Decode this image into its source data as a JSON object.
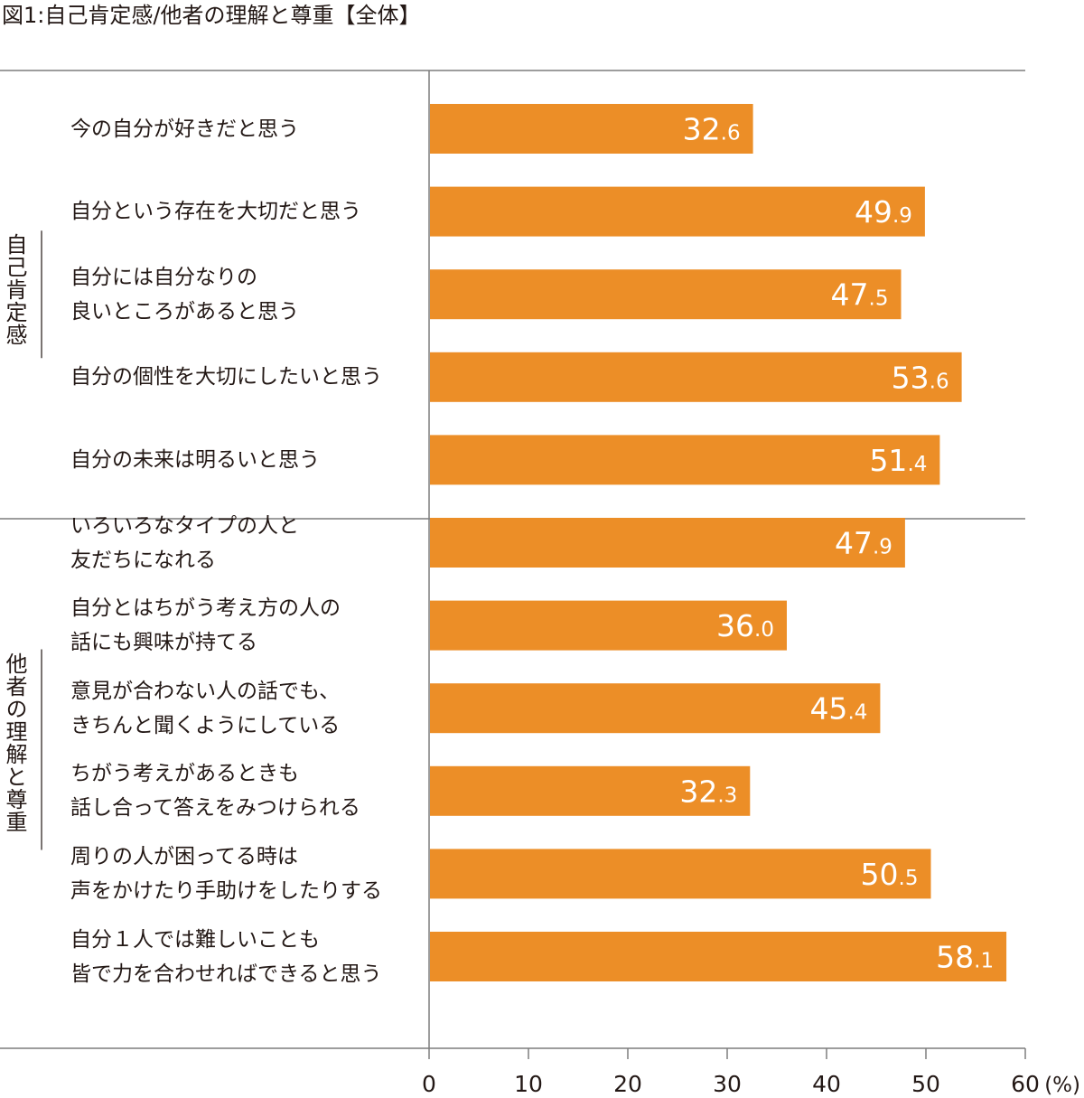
{
  "title": "図1:自己肯定感/他者の理解と尊重【全体】",
  "colors": {
    "bar": "#ec8e27",
    "axis": "#7d7d7d",
    "text": "#231815",
    "value_text": "#ffffff"
  },
  "chart_data": {
    "type": "bar",
    "orientation": "horizontal",
    "title": "図1:自己肯定感/他者の理解と尊重【全体】",
    "unit": "(%)",
    "xlim": [
      0,
      60
    ],
    "ticks": [
      0,
      10,
      20,
      30,
      40,
      50,
      60
    ],
    "groups": [
      {
        "name": "自己肯定感",
        "items": [
          {
            "lines": [
              "今の自分が好きだと思う"
            ],
            "value": 32.6,
            "display": [
              "32",
              ".6"
            ]
          },
          {
            "lines": [
              "自分という存在を大切だと思う"
            ],
            "value": 49.9,
            "display": [
              "49",
              ".9"
            ]
          },
          {
            "lines": [
              "自分には自分なりの",
              "良いところがあると思う"
            ],
            "value": 47.5,
            "display": [
              "47",
              ".5"
            ]
          },
          {
            "lines": [
              "自分の個性を大切にしたいと思う"
            ],
            "value": 53.6,
            "display": [
              "53",
              ".6"
            ]
          },
          {
            "lines": [
              "自分の未来は明るいと思う"
            ],
            "value": 51.4,
            "display": [
              "51",
              ".4"
            ]
          }
        ]
      },
      {
        "name": "他者の理解と尊重",
        "items": [
          {
            "lines": [
              "いろいろなタイプの人と",
              "友だちになれる"
            ],
            "value": 47.9,
            "display": [
              "47",
              ".9"
            ]
          },
          {
            "lines": [
              "自分とはちがう考え方の人の",
              "話にも興味が持てる"
            ],
            "value": 36.0,
            "display": [
              "36",
              ".0"
            ]
          },
          {
            "lines": [
              "意見が合わない人の話でも、",
              "きちんと聞くようにしている"
            ],
            "value": 45.4,
            "display": [
              "45",
              ".4"
            ]
          },
          {
            "lines": [
              "ちがう考えがあるときも",
              "話し合って答えをみつけられる"
            ],
            "value": 32.3,
            "display": [
              "32",
              ".3"
            ]
          },
          {
            "lines": [
              "周りの人が困ってる時は",
              "声をかけたり手助けをしたりする"
            ],
            "value": 50.5,
            "display": [
              "50",
              ".5"
            ]
          },
          {
            "lines": [
              "自分１人では難しいことも",
              "皆で力を合わせればできると思う"
            ],
            "value": 58.1,
            "display": [
              "58",
              ".1"
            ]
          }
        ]
      }
    ]
  }
}
